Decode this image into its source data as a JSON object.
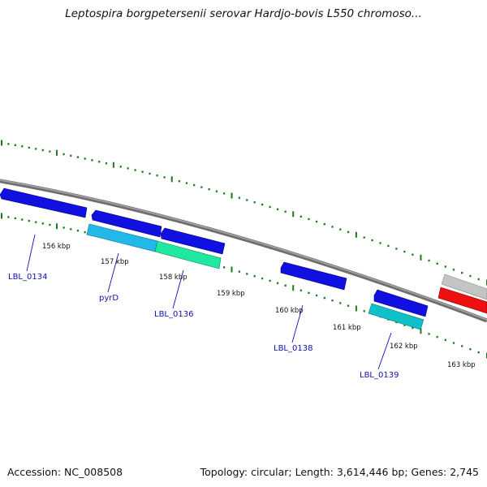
{
  "title": "Leptospira borgpetersenii serovar Hardjo-bovis L550 chromoso...",
  "footer": {
    "accession": "Accession: NC_008508",
    "summary": "Topology: circular; Length: 3,614,446 bp; Genes: 2,745"
  },
  "colors": {
    "backbone": "#808080",
    "tick": "#1a7a1a",
    "gene_blue": "#1010e0",
    "gene_cyan": "#22b8e8",
    "gene_green": "#20e8a0",
    "gene_teal": "#10c0c8",
    "gene_gray": "#c0c0c0",
    "gene_red": "#ee1010",
    "label": "#1010b0"
  },
  "kbp_labels": [
    "156 kbp",
    "157 kbp",
    "158 kbp",
    "159 kbp",
    "160 kbp",
    "161 kbp",
    "162 kbp",
    "163 kbp"
  ],
  "gene_labels": [
    "LBL_0134",
    "pyrD",
    "LBL_0136",
    "LBL_0138",
    "LBL_0139"
  ]
}
